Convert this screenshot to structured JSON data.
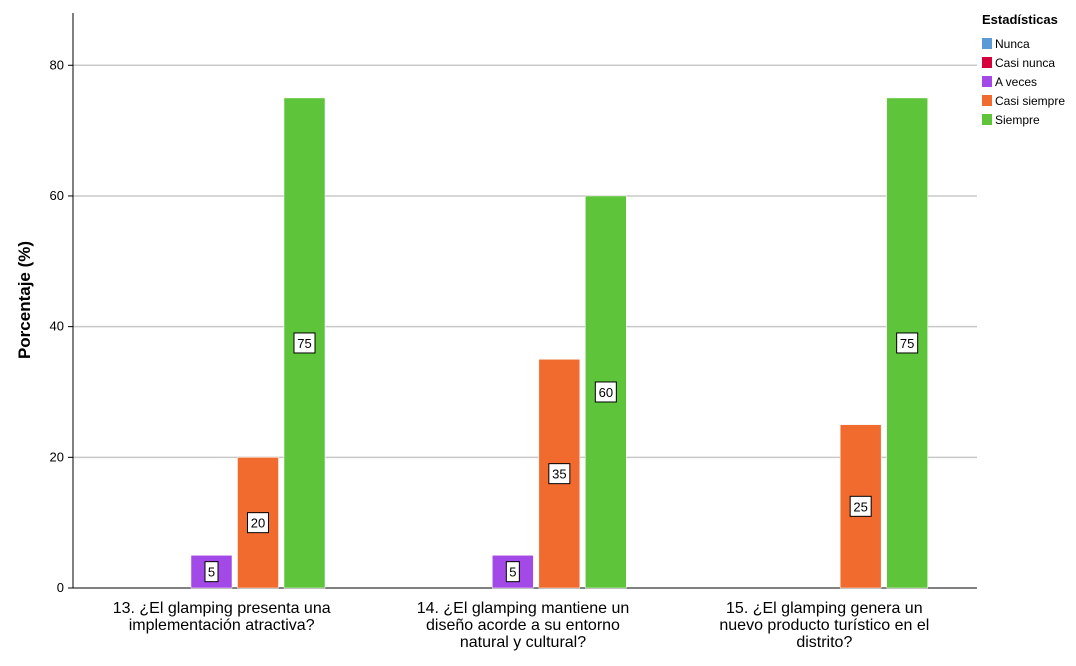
{
  "chart_data": {
    "type": "bar",
    "ylabel": "Porcentaje (%)",
    "ylim": [
      0,
      88
    ],
    "yticks": [
      0,
      20,
      40,
      60,
      80
    ],
    "grid": true,
    "legend": {
      "title": "Estadísticas",
      "placement": "top-right"
    },
    "categories": [
      [
        "13. ¿El glamping presenta una",
        "implementación atractiva?"
      ],
      [
        "14. ¿El glamping mantiene un",
        "diseño acorde a su entorno",
        "natural y cultural?"
      ],
      [
        "15. ¿El glamping genera un",
        "nuevo producto turístico en el",
        "distrito?"
      ]
    ],
    "series": [
      {
        "name": "Nunca",
        "color": "#5b9bd5",
        "values": [
          null,
          null,
          null
        ]
      },
      {
        "name": "Casi nunca",
        "color": "#d6003c",
        "values": [
          null,
          null,
          null
        ]
      },
      {
        "name": "A veces",
        "color": "#a349e8",
        "values": [
          5,
          5,
          null
        ]
      },
      {
        "name": "Casi siempre",
        "color": "#f26b2e",
        "values": [
          20,
          35,
          25
        ]
      },
      {
        "name": "Siempre",
        "color": "#5ec43a",
        "values": [
          75,
          60,
          75
        ]
      }
    ]
  }
}
